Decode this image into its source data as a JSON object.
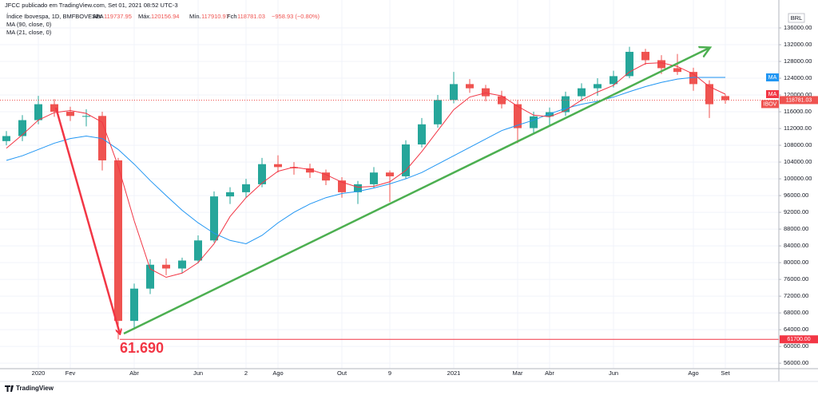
{
  "header": {
    "published": "JFCC publicado em TradingView.com, Set 01, 2021 08:52 UTC-3",
    "symbol": "Índice Ibovespa, 1D, BMFBOVESPA",
    "labels": {
      "open": "Abr",
      "high": "Máx.",
      "low": "Mín.",
      "close": "Fch"
    },
    "change": "−958.93 (−0.80%)",
    "indicators": [
      "MA (90, close, 0)",
      "MA (21, close, 0)"
    ]
  },
  "chart_data": {
    "type": "candlestick",
    "categories": [
      null,
      null,
      "2020",
      null,
      "Fev",
      null,
      null,
      null,
      "Abr",
      null,
      null,
      null,
      "Jun",
      null,
      null,
      "2",
      null,
      "Ago",
      null,
      null,
      null,
      "Out",
      null,
      null,
      "9",
      null,
      null,
      null,
      "2021",
      null,
      null,
      null,
      "Mar",
      null,
      "Abr",
      null,
      null,
      null,
      "Jun",
      null,
      null,
      null,
      null,
      "Ago",
      null,
      "Set"
    ],
    "open": [
      109000,
      110200,
      114000,
      117800,
      116000,
      114800,
      115000,
      104400,
      66100,
      73800,
      79500,
      78600,
      80500,
      85300,
      95800,
      96800,
      98700,
      103500,
      102800,
      102500,
      101500,
      99600,
      96800,
      98700,
      101500,
      100600,
      108200,
      113000,
      118800,
      122600,
      121600,
      119700,
      117800,
      112100,
      114900,
      115900,
      119700,
      121600,
      122600,
      124500,
      130300,
      128300,
      126400,
      125500,
      122600,
      119737.95
    ],
    "high": [
      111400,
      115200,
      119800,
      119000,
      117200,
      116600,
      116000,
      105000,
      75000,
      80800,
      81000,
      81200,
      86500,
      97000,
      98000,
      100000,
      105000,
      105600,
      104000,
      103600,
      102200,
      100400,
      99500,
      102800,
      102000,
      109200,
      114500,
      120000,
      125500,
      123800,
      122400,
      121000,
      118800,
      116000,
      117000,
      120800,
      122800,
      124000,
      125800,
      131500,
      131000,
      129500,
      129800,
      126500,
      123500,
      120156.94
    ],
    "low": [
      108000,
      109000,
      113000,
      114800,
      113800,
      112500,
      102000,
      61690,
      64000,
      72500,
      77000,
      77500,
      79800,
      84800,
      94000,
      95500,
      98000,
      101500,
      101000,
      100200,
      98500,
      95500,
      94000,
      97800,
      94500,
      100000,
      107500,
      112200,
      118000,
      120500,
      118500,
      116800,
      108500,
      110800,
      112500,
      115000,
      118500,
      119800,
      121800,
      124000,
      127200,
      125000,
      124800,
      121000,
      114500,
      117910.97
    ],
    "close": [
      110200,
      114000,
      117800,
      116000,
      115000,
      115000,
      104400,
      66100,
      73800,
      79500,
      78600,
      80500,
      85300,
      95800,
      96800,
      98700,
      103500,
      102800,
      102500,
      101500,
      99600,
      96800,
      98700,
      101500,
      100600,
      108200,
      113000,
      118800,
      122600,
      121600,
      119700,
      117800,
      112100,
      114900,
      115900,
      119700,
      121600,
      122600,
      124500,
      130300,
      128300,
      126400,
      125500,
      122600,
      117800,
      118781.03
    ],
    "colors": {
      "up": "#26a69a",
      "down": "#ef5350"
    },
    "series": [
      {
        "name": "MA",
        "color": "#2196f3",
        "values": [
          104400,
          105500,
          107000,
          108500,
          109600,
          110200,
          109600,
          107000,
          103500,
          99600,
          96000,
          92500,
          89500,
          87000,
          85300,
          84500,
          86500,
          89500,
          92000,
          94000,
          95500,
          96500,
          97000,
          97800,
          98800,
          100000,
          101500,
          103500,
          105500,
          107500,
          109500,
          111500,
          112800,
          114000,
          115500,
          116800,
          117800,
          118500,
          119500,
          120800,
          122000,
          123000,
          123800,
          124200,
          124200,
          124200
        ]
      },
      {
        "name": "MA",
        "color": "#f23645",
        "values": [
          107300,
          110500,
          114000,
          115800,
          116300,
          115600,
          113500,
          103000,
          90000,
          78500,
          76500,
          77500,
          80000,
          84500,
          91000,
          95500,
          99000,
          101800,
          102800,
          102200,
          101000,
          99200,
          98000,
          98200,
          99300,
          102000,
          106500,
          111500,
          116500,
          119500,
          120500,
          119800,
          117300,
          115200,
          114800,
          116300,
          118800,
          120700,
          122300,
          125500,
          127500,
          127700,
          126800,
          125000,
          122000,
          120200
        ]
      }
    ],
    "ylim": [
      54700,
      140000
    ],
    "yticks": [
      {
        "value": 136000,
        "label": "136000.00"
      },
      {
        "value": 132000,
        "label": "132000.00"
      },
      {
        "value": 128000,
        "label": "128000.00"
      },
      {
        "value": 124000,
        "label": "124000.00"
      },
      {
        "value": 120000,
        "label": "120000.00"
      },
      {
        "value": 116000,
        "label": "116000.00"
      },
      {
        "value": 112000,
        "label": "112000.00"
      },
      {
        "value": 108000,
        "label": "108000.00"
      },
      {
        "value": 104000,
        "label": "104000.00"
      },
      {
        "value": 100000,
        "label": "100000.00"
      },
      {
        "value": 96000,
        "label": "96000.00"
      },
      {
        "value": 92000,
        "label": "92000.00"
      },
      {
        "value": 88000,
        "label": "88000.00"
      },
      {
        "value": 84000,
        "label": "84000.00"
      },
      {
        "value": 80000,
        "label": "80000.00"
      },
      {
        "value": 76000,
        "label": "76000.00"
      },
      {
        "value": 72000,
        "label": "72000.00"
      },
      {
        "value": 68000,
        "label": "68000.00"
      },
      {
        "value": 64000,
        "label": "64000.00"
      },
      {
        "value": 60000,
        "label": "60000.00"
      },
      {
        "value": 56000,
        "label": "56000.00"
      }
    ],
    "grid": true,
    "currency": "BRL",
    "symbol_tag": "IBOV",
    "level": {
      "value": 61700,
      "label": "61700.00"
    },
    "annotation": "61.690"
  },
  "footer": {
    "brand": "TradingView"
  }
}
